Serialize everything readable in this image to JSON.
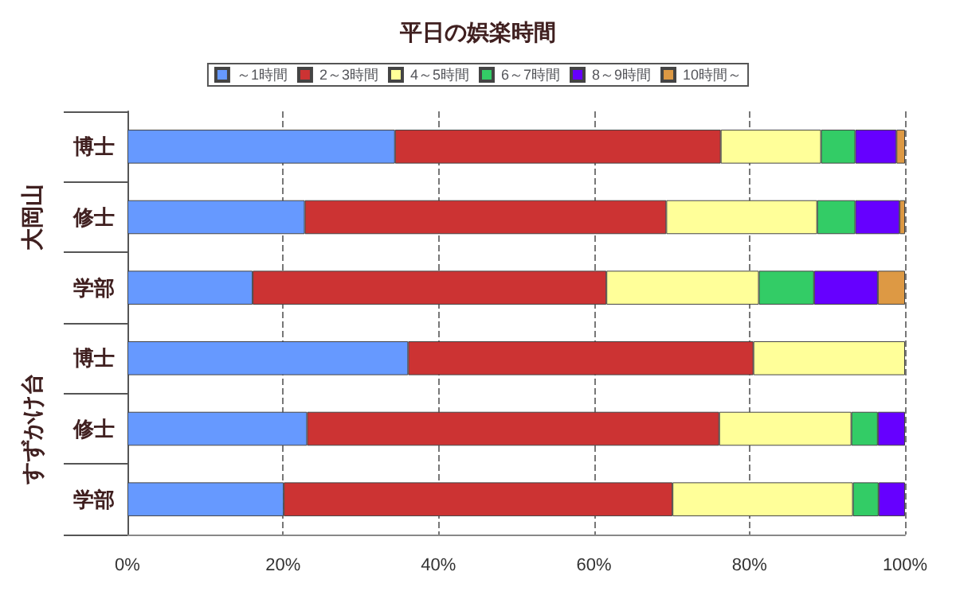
{
  "chart_data": {
    "type": "bar",
    "orientation": "horizontal",
    "stacked": true,
    "title": "平日の娯楽時間",
    "categories": [
      "博士",
      "修士",
      "学部",
      "博士",
      "修士",
      "学部"
    ],
    "annotations": [
      "大岡山",
      "すずかけ台"
    ],
    "series": [
      {
        "name": "～1時間",
        "color": "#6699ff",
        "values": [
          34.4,
          22.8,
          16.1,
          36.1,
          23.1,
          20.1
        ]
      },
      {
        "name": "2～3時間",
        "color": "#cc3333",
        "values": [
          41.9,
          46.5,
          45.5,
          44.4,
          53.0,
          50.0
        ]
      },
      {
        "name": "4～5時間",
        "color": "#ffff99",
        "values": [
          12.9,
          19.4,
          19.6,
          19.5,
          17.0,
          23.2
        ]
      },
      {
        "name": "6～7時間",
        "color": "#33cc66",
        "values": [
          4.4,
          4.9,
          7.1,
          0,
          3.4,
          3.3
        ]
      },
      {
        "name": "8～9時間",
        "color": "#6600ff",
        "values": [
          5.3,
          5.7,
          8.2,
          0,
          3.5,
          3.4
        ]
      },
      {
        "name": "10時間～",
        "color": "#dd9944",
        "values": [
          1.1,
          0.7,
          3.5,
          0,
          0,
          0
        ]
      }
    ],
    "xlim": [
      0,
      100
    ],
    "xticks": [
      {
        "value": 0,
        "label": "0%"
      },
      {
        "value": 20,
        "label": "20%"
      },
      {
        "value": 40,
        "label": "40%"
      },
      {
        "value": 60,
        "label": "60%"
      },
      {
        "value": 80,
        "label": "80%"
      },
      {
        "value": 100,
        "label": "100%"
      }
    ],
    "grid": "x",
    "legend": "top"
  }
}
